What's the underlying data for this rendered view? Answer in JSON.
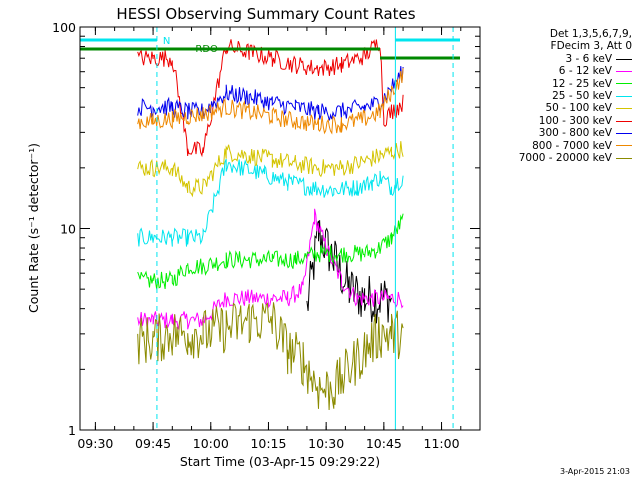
{
  "chart_data": {
    "type": "line",
    "title": "HESSI Observing Summary Count Rates",
    "xlabel": "Start Time (03-Apr-15 09:29:22)",
    "ylabel": "Count Rate (s⁻¹ detector⁻¹)",
    "y_scale": "log",
    "ylim": [
      1,
      100
    ],
    "xlim": [
      "09:26",
      "11:10"
    ],
    "x_ticks": [
      "09:30",
      "09:45",
      "10:00",
      "10:15",
      "10:30",
      "10:45",
      "11:00"
    ],
    "y_ticks": [
      "1",
      "10",
      "100"
    ],
    "legend": {
      "position": "right",
      "header": [
        "Det 1,3,5,6,7,9,",
        "FDecim 3, Att 0"
      ]
    },
    "annotations": {
      "n_label": "N",
      "rdo_label": "RDO"
    },
    "series": [
      {
        "name": "3 - 6 keV",
        "color": "#000000",
        "x": [
          "09:40",
          "09:43",
          "09:47",
          "09:50",
          "09:53",
          "09:55",
          "09:59",
          "10:04",
          "10:10",
          "10:15",
          "10:20",
          "10:25",
          "10:28",
          "10:32",
          "10:36",
          "10:40",
          "10:44",
          "10:47",
          "10:50",
          "10:52"
        ],
        "y": [
          null,
          null,
          null,
          null,
          null,
          null,
          null,
          null,
          null,
          null,
          null,
          4.0,
          9.5,
          7.0,
          5.0,
          4.5,
          4.5,
          4.5,
          null,
          null
        ]
      },
      {
        "name": "6 - 12 keV",
        "color": "#ff00ff",
        "x": [
          "09:41",
          "09:45",
          "09:50",
          "09:54",
          "09:58",
          "10:04",
          "10:10",
          "10:16",
          "10:20",
          "10:24",
          "10:27",
          "10:30",
          "10:34",
          "10:38",
          "10:42",
          "10:46",
          "10:50",
          "10:52"
        ],
        "y": [
          3.5,
          3.5,
          3.5,
          3.5,
          3.5,
          4.5,
          4.5,
          4.5,
          4.5,
          5.0,
          11.5,
          8.0,
          5.5,
          4.5,
          4.5,
          4.5,
          4.5,
          null
        ]
      },
      {
        "name": "12 - 25 keV",
        "color": "#00ee00",
        "x": [
          "09:41",
          "09:45",
          "09:50",
          "09:54",
          "09:58",
          "10:04",
          "10:10",
          "10:16",
          "10:22",
          "10:28",
          "10:34",
          "10:40",
          "10:44",
          "10:47",
          "10:50",
          "10:52"
        ],
        "y": [
          5.5,
          5.5,
          5.5,
          6.5,
          6.5,
          7.0,
          7.0,
          7.0,
          7.0,
          7.5,
          7.5,
          7.5,
          8.0,
          9.0,
          11.0,
          null
        ]
      },
      {
        "name": "25 - 50 keV",
        "color": "#00e5ee",
        "x": [
          "09:41",
          "09:45",
          "09:50",
          "09:54",
          "09:58",
          "10:04",
          "10:08",
          "10:14",
          "10:20",
          "10:26",
          "10:32",
          "10:38",
          "10:42",
          "10:44",
          "10:47",
          "10:50",
          "10:52"
        ],
        "y": [
          9.0,
          9.0,
          9.0,
          9.0,
          9.0,
          21.0,
          20.0,
          18.5,
          17.0,
          16.0,
          15.5,
          16.0,
          17.0,
          18.0,
          16.0,
          18.0,
          null
        ]
      },
      {
        "name": "50 - 100 keV",
        "color": "#d4c400",
        "x": [
          "09:41",
          "09:45",
          "09:50",
          "09:54",
          "09:58",
          "10:04",
          "10:10",
          "10:16",
          "10:22",
          "10:28",
          "10:34",
          "10:40",
          "10:44",
          "10:47",
          "10:50",
          "10:52"
        ],
        "y": [
          20.0,
          20.0,
          20.0,
          16.0,
          16.0,
          24.0,
          23.0,
          22.0,
          21.0,
          20.0,
          20.0,
          21.5,
          23.0,
          24.0,
          25.0,
          null
        ]
      },
      {
        "name": "100 - 300 keV",
        "color": "#ee0000",
        "x": [
          "09:41",
          "09:45",
          "09:50",
          "09:54",
          "09:58",
          "10:04",
          "10:10",
          "10:16",
          "10:22",
          "10:28",
          "10:34",
          "10:40",
          "10:44",
          "10:45",
          "10:47",
          "10:50",
          "10:52"
        ],
        "y": [
          70.0,
          70.0,
          70.0,
          25.0,
          24.0,
          80.0,
          75.0,
          70.0,
          65.0,
          62.0,
          65.0,
          72.0,
          85.0,
          35.0,
          38.0,
          42.0,
          null
        ]
      },
      {
        "name": "300 - 800 keV",
        "color": "#0000ee",
        "x": [
          "09:41",
          "09:45",
          "09:50",
          "09:54",
          "09:58",
          "10:04",
          "10:10",
          "10:16",
          "10:22",
          "10:28",
          "10:34",
          "10:40",
          "10:44",
          "10:47",
          "10:50",
          "10:52"
        ],
        "y": [
          40.0,
          40.0,
          40.0,
          38.0,
          38.0,
          47.0,
          45.0,
          42.0,
          40.0,
          38.0,
          38.0,
          40.0,
          42.0,
          50.0,
          60.0,
          null
        ]
      },
      {
        "name": "800 - 7000 keV",
        "color": "#ee8800",
        "x": [
          "09:41",
          "09:45",
          "09:50",
          "09:54",
          "09:58",
          "10:04",
          "10:10",
          "10:16",
          "10:22",
          "10:28",
          "10:34",
          "10:40",
          "10:44",
          "10:47",
          "10:50",
          "10:52"
        ],
        "y": [
          34.0,
          34.0,
          35.0,
          36.0,
          37.0,
          40.0,
          38.0,
          36.0,
          34.0,
          33.0,
          33.0,
          35.0,
          38.0,
          48.0,
          58.0,
          null
        ]
      },
      {
        "name": "7000 - 20000 keV",
        "color": "#8b8b00",
        "x": [
          "09:41",
          "09:45",
          "09:50",
          "09:54",
          "09:58",
          "10:04",
          "10:10",
          "10:16",
          "10:20",
          "10:24",
          "10:28",
          "10:32",
          "10:36",
          "10:40",
          "10:44",
          "10:47",
          "10:50",
          "10:52"
        ],
        "y": [
          2.8,
          2.8,
          3.0,
          3.0,
          3.0,
          3.2,
          3.5,
          3.5,
          2.5,
          2.2,
          1.6,
          1.6,
          2.0,
          2.5,
          3.0,
          3.0,
          3.0,
          null
        ]
      }
    ]
  },
  "footer": {
    "timestamp": "3-Apr-2015 21:03"
  }
}
